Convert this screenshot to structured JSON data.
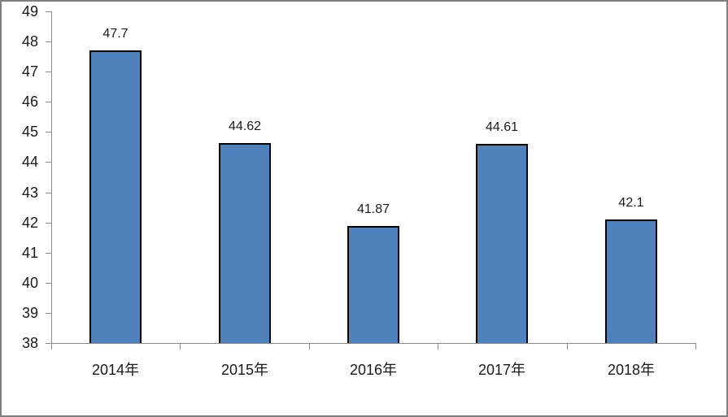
{
  "chart_data": {
    "type": "bar",
    "categories": [
      "2014年",
      "2015年",
      "2016年",
      "2017年",
      "2018年"
    ],
    "values": [
      47.7,
      44.62,
      41.87,
      44.61,
      42.1
    ],
    "data_labels": [
      "47.7",
      "44.62",
      "41.87",
      "44.61",
      "42.1"
    ],
    "xlabel": "",
    "ylabel": "",
    "ylim": [
      38,
      49
    ],
    "ytick_interval": 1,
    "ytick_labels": [
      "38",
      "39",
      "40",
      "41",
      "42",
      "43",
      "44",
      "45",
      "46",
      "47",
      "48",
      "49"
    ],
    "grid": false,
    "legend": false,
    "data_labels_position": "above-bar",
    "tick_style": "outside",
    "colors": {
      "bar_fill": "#4F81BD",
      "bar_border": "#000000",
      "axis_line": "#8C8C8C",
      "frame_border": "#7F7F7F",
      "label_text": "#1A1A1A"
    }
  }
}
